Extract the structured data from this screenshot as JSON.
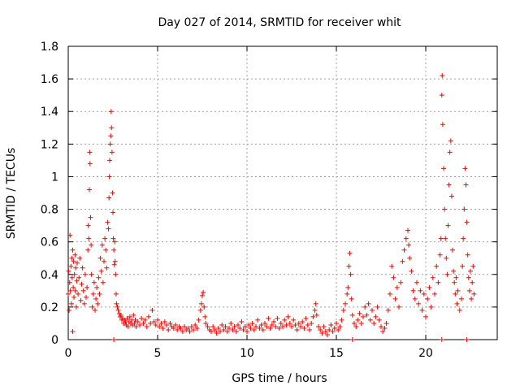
{
  "chart_data": {
    "type": "scatter",
    "title": "Day 027 of 2014, SRMTID for receiver whit",
    "xlabel": "GPS time / hours",
    "ylabel": "SRMTID / TECUs",
    "xlim": [
      0,
      24
    ],
    "ylim": [
      0,
      1.8
    ],
    "xticks": [
      0,
      5,
      10,
      15,
      20
    ],
    "xtick_labels": [
      "0",
      "5",
      "10",
      "15",
      "20"
    ],
    "yticks": [
      0,
      0.2,
      0.4,
      0.6,
      0.8,
      1,
      1.2,
      1.4,
      1.6,
      1.8
    ],
    "ytick_labels": [
      "0",
      "0.2",
      "0.4",
      "0.6",
      "0.8",
      "1",
      "1.2",
      "1.4",
      "1.6",
      "1.8"
    ],
    "grid": true,
    "marker": "+",
    "color": "#ff0000",
    "series": [
      {
        "name": "SRMTID",
        "points": [
          [
            0.0,
            0.28
          ],
          [
            0.02,
            0.42
          ],
          [
            0.05,
            0.18
          ],
          [
            0.08,
            0.35
          ],
          [
            0.1,
            0.64
          ],
          [
            0.12,
            0.3
          ],
          [
            0.15,
            0.45
          ],
          [
            0.18,
            0.22
          ],
          [
            0.2,
            0.5
          ],
          [
            0.22,
            0.38
          ],
          [
            0.25,
            0.55
          ],
          [
            0.28,
            0.32
          ],
          [
            0.3,
            0.48
          ],
          [
            0.32,
            0.26
          ],
          [
            0.35,
            0.4
          ],
          [
            0.38,
            0.52
          ],
          [
            0.4,
            0.3
          ],
          [
            0.42,
            0.44
          ],
          [
            0.45,
            0.2
          ],
          [
            0.48,
            0.36
          ],
          [
            0.5,
            0.47
          ],
          [
            0.55,
            0.28
          ],
          [
            0.6,
            0.38
          ],
          [
            0.65,
            0.5
          ],
          [
            0.7,
            0.24
          ],
          [
            0.75,
            0.34
          ],
          [
            0.8,
            0.44
          ],
          [
            0.85,
            0.3
          ],
          [
            0.9,
            0.22
          ],
          [
            0.95,
            0.4
          ],
          [
            1.0,
            0.26
          ],
          [
            1.05,
            0.32
          ],
          [
            1.1,
            0.55
          ],
          [
            1.12,
            0.7
          ],
          [
            1.15,
            0.62
          ],
          [
            1.18,
            0.92
          ],
          [
            1.2,
            1.15
          ],
          [
            1.22,
            1.08
          ],
          [
            1.25,
            0.75
          ],
          [
            1.28,
            0.58
          ],
          [
            1.3,
            0.4
          ],
          [
            1.35,
            0.2
          ],
          [
            1.4,
            0.28
          ],
          [
            1.45,
            0.35
          ],
          [
            1.5,
            0.18
          ],
          [
            1.55,
            0.25
          ],
          [
            1.6,
            0.32
          ],
          [
            1.65,
            0.22
          ],
          [
            1.7,
            0.38
          ],
          [
            1.75,
            0.28
          ],
          [
            1.8,
            0.5
          ],
          [
            1.85,
            0.42
          ],
          [
            1.9,
            0.58
          ],
          [
            1.95,
            0.35
          ],
          [
            2.0,
            0.48
          ],
          [
            2.05,
            0.62
          ],
          [
            2.1,
            0.55
          ],
          [
            2.15,
            0.44
          ],
          [
            2.2,
            0.72
          ],
          [
            2.25,
            0.68
          ],
          [
            2.28,
            0.87
          ],
          [
            2.3,
            1.0
          ],
          [
            2.32,
            1.1
          ],
          [
            2.35,
            1.2
          ],
          [
            2.38,
            1.25
          ],
          [
            2.4,
            1.4
          ],
          [
            2.42,
            1.3
          ],
          [
            2.45,
            1.15
          ],
          [
            2.48,
            0.9
          ],
          [
            2.5,
            0.78
          ],
          [
            2.52,
            0.62
          ],
          [
            2.55,
            0.55
          ],
          [
            2.58,
            0.46
          ],
          [
            2.6,
            0.6
          ],
          [
            2.62,
            0.48
          ],
          [
            2.65,
            0.4
          ],
          [
            2.68,
            0.28
          ],
          [
            2.7,
            0.22
          ],
          [
            2.75,
            0.2
          ],
          [
            2.8,
            0.18
          ],
          [
            2.85,
            0.16
          ],
          [
            2.9,
            0.14
          ],
          [
            2.95,
            0.15
          ],
          [
            3.0,
            0.12
          ],
          [
            3.05,
            0.13
          ],
          [
            3.1,
            0.1
          ],
          [
            3.15,
            0.12
          ],
          [
            3.2,
            0.11
          ],
          [
            3.25,
            0.09
          ],
          [
            3.3,
            0.13
          ],
          [
            3.35,
            0.08
          ],
          [
            3.4,
            0.11
          ],
          [
            3.45,
            0.14
          ],
          [
            3.5,
            0.1
          ],
          [
            3.55,
            0.12
          ],
          [
            3.6,
            0.09
          ],
          [
            3.65,
            0.15
          ],
          [
            3.7,
            0.1
          ],
          [
            3.75,
            0.12
          ],
          [
            3.8,
            0.08
          ],
          [
            3.9,
            0.11
          ],
          [
            4.0,
            0.09
          ],
          [
            4.1,
            0.13
          ],
          [
            4.2,
            0.1
          ],
          [
            4.3,
            0.12
          ],
          [
            4.4,
            0.08
          ],
          [
            4.5,
            0.14
          ],
          [
            4.6,
            0.1
          ],
          [
            4.7,
            0.18
          ],
          [
            4.8,
            0.11
          ],
          [
            4.9,
            0.09
          ],
          [
            5.0,
            0.12
          ],
          [
            5.1,
            0.08
          ],
          [
            5.2,
            0.1
          ],
          [
            5.3,
            0.07
          ],
          [
            5.4,
            0.11
          ],
          [
            5.5,
            0.09
          ],
          [
            5.6,
            0.06
          ],
          [
            5.7,
            0.1
          ],
          [
            5.8,
            0.08
          ],
          [
            5.9,
            0.07
          ],
          [
            6.0,
            0.09
          ],
          [
            6.1,
            0.06
          ],
          [
            6.2,
            0.08
          ],
          [
            6.3,
            0.07
          ],
          [
            6.4,
            0.05
          ],
          [
            6.5,
            0.08
          ],
          [
            6.6,
            0.06
          ],
          [
            6.7,
            0.07
          ],
          [
            6.8,
            0.05
          ],
          [
            6.9,
            0.08
          ],
          [
            7.0,
            0.06
          ],
          [
            7.1,
            0.09
          ],
          [
            7.2,
            0.07
          ],
          [
            7.3,
            0.12
          ],
          [
            7.4,
            0.18
          ],
          [
            7.45,
            0.22
          ],
          [
            7.5,
            0.27
          ],
          [
            7.55,
            0.29
          ],
          [
            7.6,
            0.2
          ],
          [
            7.65,
            0.14
          ],
          [
            7.7,
            0.1
          ],
          [
            7.8,
            0.08
          ],
          [
            7.9,
            0.06
          ],
          [
            8.0,
            0.05
          ],
          [
            8.1,
            0.08
          ],
          [
            8.2,
            0.06
          ],
          [
            8.3,
            0.04
          ],
          [
            8.4,
            0.07
          ],
          [
            8.5,
            0.05
          ],
          [
            8.6,
            0.09
          ],
          [
            8.7,
            0.06
          ],
          [
            8.8,
            0.08
          ],
          [
            8.9,
            0.05
          ],
          [
            9.0,
            0.07
          ],
          [
            9.1,
            0.1
          ],
          [
            9.2,
            0.06
          ],
          [
            9.3,
            0.08
          ],
          [
            9.4,
            0.05
          ],
          [
            9.5,
            0.09
          ],
          [
            9.6,
            0.07
          ],
          [
            9.7,
            0.11
          ],
          [
            9.8,
            0.06
          ],
          [
            9.9,
            0.08
          ],
          [
            10.0,
            0.05
          ],
          [
            10.1,
            0.09
          ],
          [
            10.2,
            0.07
          ],
          [
            10.3,
            0.1
          ],
          [
            10.4,
            0.06
          ],
          [
            10.5,
            0.08
          ],
          [
            10.6,
            0.12
          ],
          [
            10.7,
            0.07
          ],
          [
            10.8,
            0.09
          ],
          [
            10.9,
            0.06
          ],
          [
            11.0,
            0.1
          ],
          [
            11.1,
            0.08
          ],
          [
            11.2,
            0.13
          ],
          [
            11.3,
            0.07
          ],
          [
            11.4,
            0.09
          ],
          [
            11.5,
            0.11
          ],
          [
            11.6,
            0.08
          ],
          [
            11.7,
            0.13
          ],
          [
            11.8,
            0.07
          ],
          [
            11.9,
            0.1
          ],
          [
            12.0,
            0.08
          ],
          [
            12.1,
            0.12
          ],
          [
            12.2,
            0.09
          ],
          [
            12.3,
            0.14
          ],
          [
            12.4,
            0.1
          ],
          [
            12.5,
            0.08
          ],
          [
            12.6,
            0.12
          ],
          [
            12.7,
            0.09
          ],
          [
            12.8,
            0.06
          ],
          [
            12.9,
            0.1
          ],
          [
            13.0,
            0.08
          ],
          [
            13.1,
            0.11
          ],
          [
            13.2,
            0.07
          ],
          [
            13.3,
            0.13
          ],
          [
            13.4,
            0.09
          ],
          [
            13.5,
            0.06
          ],
          [
            13.6,
            0.1
          ],
          [
            13.7,
            0.14
          ],
          [
            13.8,
            0.18
          ],
          [
            13.85,
            0.22
          ],
          [
            13.9,
            0.15
          ],
          [
            14.0,
            0.08
          ],
          [
            14.1,
            0.06
          ],
          [
            14.2,
            0.04
          ],
          [
            14.3,
            0.08
          ],
          [
            14.4,
            0.05
          ],
          [
            14.5,
            0.03
          ],
          [
            14.6,
            0.06
          ],
          [
            14.7,
            0.09
          ],
          [
            14.8,
            0.05
          ],
          [
            14.9,
            0.07
          ],
          [
            15.0,
            0.1
          ],
          [
            15.1,
            0.06
          ],
          [
            15.2,
            0.08
          ],
          [
            15.3,
            0.12
          ],
          [
            15.4,
            0.18
          ],
          [
            15.5,
            0.22
          ],
          [
            15.6,
            0.28
          ],
          [
            15.65,
            0.32
          ],
          [
            15.7,
            0.45
          ],
          [
            15.75,
            0.53
          ],
          [
            15.8,
            0.4
          ],
          [
            15.85,
            0.25
          ],
          [
            15.9,
            0.15
          ],
          [
            16.0,
            0.1
          ],
          [
            16.1,
            0.08
          ],
          [
            16.2,
            0.12
          ],
          [
            16.3,
            0.16
          ],
          [
            16.4,
            0.1
          ],
          [
            16.5,
            0.14
          ],
          [
            16.6,
            0.2
          ],
          [
            16.7,
            0.15
          ],
          [
            16.8,
            0.22
          ],
          [
            16.9,
            0.12
          ],
          [
            17.0,
            0.18
          ],
          [
            17.1,
            0.1
          ],
          [
            17.2,
            0.14
          ],
          [
            17.3,
            0.2
          ],
          [
            17.4,
            0.12
          ],
          [
            17.5,
            0.08
          ],
          [
            17.6,
            0.05
          ],
          [
            17.7,
            0.07
          ],
          [
            17.8,
            0.1
          ],
          [
            17.9,
            0.18
          ],
          [
            18.0,
            0.28
          ],
          [
            18.1,
            0.45
          ],
          [
            18.2,
            0.38
          ],
          [
            18.3,
            0.25
          ],
          [
            18.4,
            0.32
          ],
          [
            18.5,
            0.2
          ],
          [
            18.6,
            0.35
          ],
          [
            18.7,
            0.48
          ],
          [
            18.8,
            0.55
          ],
          [
            18.9,
            0.62
          ],
          [
            19.0,
            0.67
          ],
          [
            19.05,
            0.58
          ],
          [
            19.1,
            0.5
          ],
          [
            19.2,
            0.42
          ],
          [
            19.3,
            0.3
          ],
          [
            19.4,
            0.25
          ],
          [
            19.5,
            0.35
          ],
          [
            19.6,
            0.22
          ],
          [
            19.7,
            0.3
          ],
          [
            19.8,
            0.18
          ],
          [
            19.9,
            0.28
          ],
          [
            20.0,
            0.14
          ],
          [
            20.1,
            0.25
          ],
          [
            20.2,
            0.32
          ],
          [
            20.3,
            0.2
          ],
          [
            20.4,
            0.38
          ],
          [
            20.5,
            0.28
          ],
          [
            20.6,
            0.45
          ],
          [
            20.7,
            0.35
          ],
          [
            20.8,
            0.52
          ],
          [
            20.85,
            0.62
          ],
          [
            20.9,
            1.5
          ],
          [
            20.92,
            1.62
          ],
          [
            20.95,
            1.32
          ],
          [
            21.0,
            1.05
          ],
          [
            21.05,
            0.8
          ],
          [
            21.1,
            0.62
          ],
          [
            21.15,
            0.5
          ],
          [
            21.2,
            0.4
          ],
          [
            21.25,
            0.7
          ],
          [
            21.3,
            0.95
          ],
          [
            21.35,
            1.15
          ],
          [
            21.4,
            1.22
          ],
          [
            21.45,
            0.88
          ],
          [
            21.5,
            0.55
          ],
          [
            21.55,
            0.42
          ],
          [
            21.6,
            0.35
          ],
          [
            21.65,
            0.28
          ],
          [
            21.7,
            0.38
          ],
          [
            21.75,
            0.22
          ],
          [
            21.8,
            0.3
          ],
          [
            21.9,
            0.18
          ],
          [
            22.0,
            0.25
          ],
          [
            22.05,
            0.45
          ],
          [
            22.1,
            0.62
          ],
          [
            22.15,
            0.8
          ],
          [
            22.2,
            1.05
          ],
          [
            22.25,
            0.95
          ],
          [
            22.3,
            0.72
          ],
          [
            22.35,
            0.52
          ],
          [
            22.4,
            0.38
          ],
          [
            22.45,
            0.3
          ],
          [
            22.5,
            0.42
          ],
          [
            22.55,
            0.25
          ],
          [
            22.6,
            0.35
          ],
          [
            22.65,
            0.45
          ],
          [
            22.7,
            0.28
          ],
          [
            0.25,
            0.05
          ],
          [
            2.55,
            0.0
          ],
          [
            15.9,
            0.0
          ],
          [
            20.9,
            0.0
          ],
          [
            22.3,
            0.0
          ]
        ]
      }
    ]
  }
}
